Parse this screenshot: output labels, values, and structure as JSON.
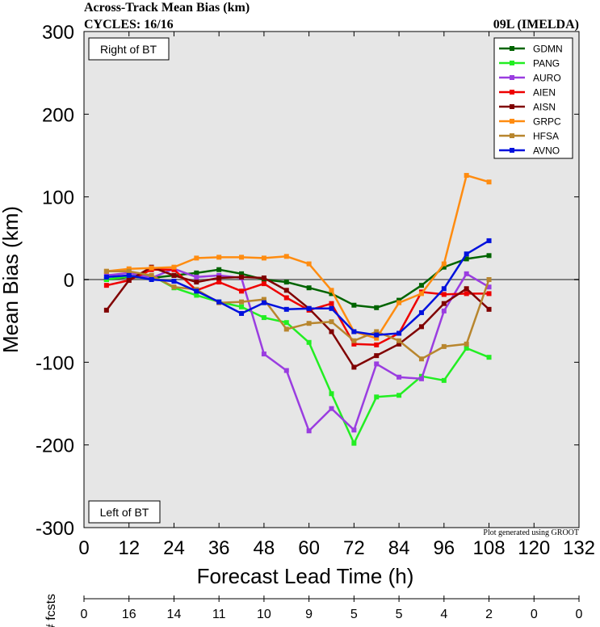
{
  "header": {
    "title_line1": "Across-Track Mean Bias (km)",
    "title_line2": "CYCLES: 16/16",
    "storm": "09L (IMELDA)"
  },
  "footnote": "Plot generated using GROOT",
  "colors": {
    "plot_bg": "#e6e6e6",
    "zero_line": "#808080"
  },
  "chart_data": {
    "type": "line",
    "title": "Across-Track Mean Bias (km)",
    "xlabel": "Forecast Lead Time (h)",
    "ylabel": "Mean Bias (km)",
    "xlim": [
      0,
      132
    ],
    "ylim": [
      -300,
      300
    ],
    "xticks": [
      0,
      12,
      24,
      36,
      48,
      60,
      72,
      84,
      96,
      108,
      120,
      132
    ],
    "yticks": [
      -300,
      -200,
      -100,
      0,
      100,
      200,
      300
    ],
    "annotations": {
      "top": "Right of BT",
      "bottom": "Left of BT"
    },
    "legend_position": "top-right",
    "x": [
      6,
      12,
      18,
      24,
      30,
      36,
      42,
      48,
      54,
      60,
      66,
      72,
      78,
      84,
      90,
      96,
      102,
      108
    ],
    "series": [
      {
        "name": "GDMN",
        "color": "#006400",
        "values": [
          0,
          3,
          2,
          5,
          8,
          12,
          7,
          0,
          -3,
          -10,
          -17,
          -31,
          -34,
          -25,
          -7,
          15,
          25,
          29
        ]
      },
      {
        "name": "PANG",
        "color": "#22ee22",
        "values": [
          0,
          4,
          5,
          -10,
          -19,
          -27,
          -33,
          -46,
          -52,
          -76,
          -138,
          -198,
          -142,
          -140,
          -117,
          -122,
          -83,
          -94
        ]
      },
      {
        "name": "AURO",
        "color": "#9a3de0",
        "values": [
          5,
          8,
          2,
          13,
          3,
          5,
          2,
          -90,
          -110,
          -183,
          -156,
          -182,
          -102,
          -118,
          -120,
          -38,
          7,
          -9
        ]
      },
      {
        "name": "AIEN",
        "color": "#ee0000",
        "values": [
          -7,
          -1,
          12,
          12,
          -13,
          -3,
          -14,
          -5,
          -22,
          -37,
          -29,
          -78,
          -79,
          -65,
          -15,
          -18,
          -17,
          -17
        ]
      },
      {
        "name": "AISN",
        "color": "#800000",
        "values": [
          -37,
          -1,
          15,
          5,
          -3,
          2,
          3,
          2,
          -13,
          -35,
          -63,
          -106,
          -92,
          -78,
          -57,
          -29,
          -11,
          -36
        ]
      },
      {
        "name": "GRPC",
        "color": "#ff8c10",
        "values": [
          10,
          13,
          14,
          15,
          26,
          27,
          27,
          26,
          28,
          19,
          -13,
          -63,
          -71,
          -28,
          -17,
          19,
          126,
          118
        ]
      },
      {
        "name": "HFSA",
        "color": "#b8862e",
        "values": [
          10,
          10,
          5,
          -9,
          -12,
          -28,
          -27,
          -24,
          -60,
          -53,
          -51,
          -74,
          -63,
          -74,
          -96,
          -81,
          -78,
          0
        ]
      },
      {
        "name": "AVNO",
        "color": "#0011dd",
        "values": [
          3,
          5,
          0,
          -2,
          -14,
          -27,
          -41,
          -28,
          -36,
          -35,
          -35,
          -63,
          -67,
          -65,
          -40,
          -11,
          31,
          47
        ]
      }
    ],
    "fcst_counts": {
      "label": "# fcsts",
      "x": [
        0,
        12,
        24,
        36,
        48,
        60,
        72,
        84,
        96,
        108,
        120,
        132
      ],
      "values": [
        "0",
        "16",
        "14",
        "11",
        "10",
        "9",
        "5",
        "5",
        "4",
        "2",
        "0",
        "0"
      ]
    }
  }
}
